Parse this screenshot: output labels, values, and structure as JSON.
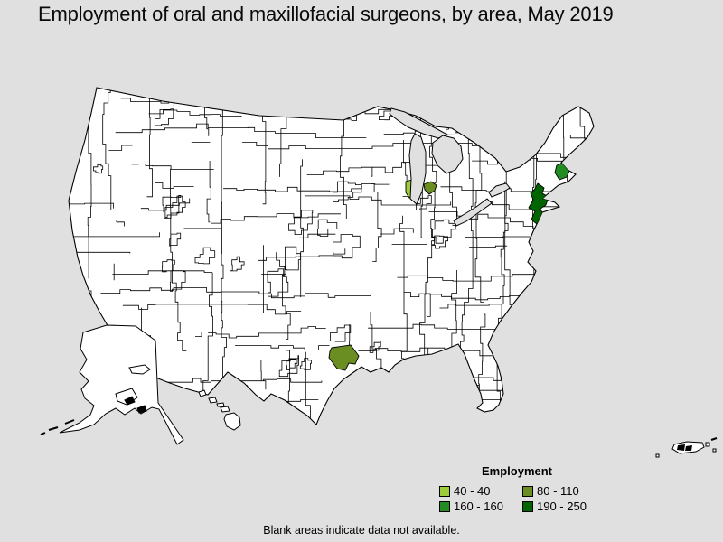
{
  "title": "Employment of oral and maxillofacial surgeons, by area, May 2019",
  "footnote": "Blank areas indicate data not available.",
  "legend": {
    "title": "Employment",
    "items": [
      {
        "label": "40 - 40",
        "color": "#9fcc3b"
      },
      {
        "label": "80 - 110",
        "color": "#6b8e23"
      },
      {
        "label": "160 - 160",
        "color": "#228b22"
      },
      {
        "label": "190 - 250",
        "color": "#006400"
      }
    ]
  },
  "map": {
    "background_color": "#e0e0e0",
    "land_fill": "#ffffff",
    "boundary_color": "#000000",
    "highlighted_areas": [
      {
        "name": "Milwaukee area (WI)",
        "employment_range": "40 - 40",
        "color": "#9fcc3b"
      },
      {
        "name": "Grand Rapids area (MI)",
        "employment_range": "80 - 110",
        "color": "#6b8e23"
      },
      {
        "name": "Houston area (TX)",
        "employment_range": "80 - 110",
        "color": "#6b8e23"
      },
      {
        "name": "Boston area (MA)",
        "employment_range": "160 - 160",
        "color": "#228b22"
      },
      {
        "name": "New York metro area (NY-NJ)",
        "employment_range": "190 - 250",
        "color": "#006400"
      }
    ]
  }
}
